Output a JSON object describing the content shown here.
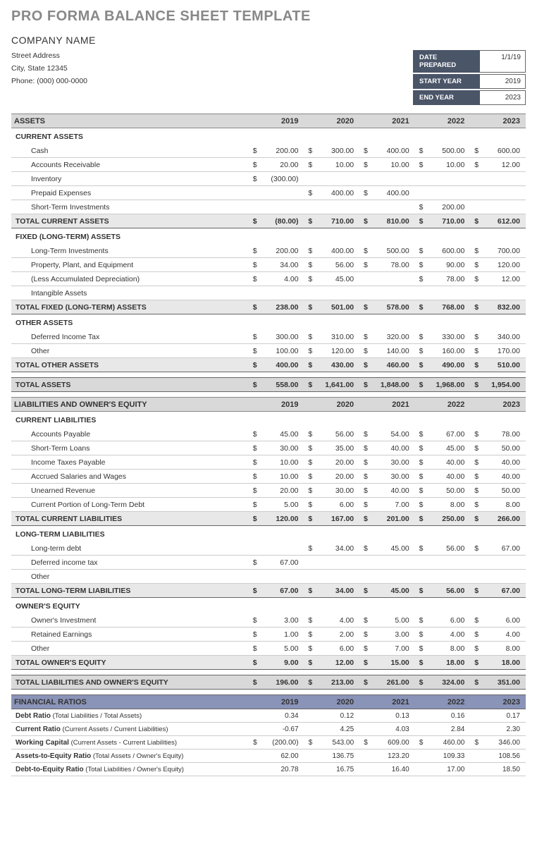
{
  "title": "PRO FORMA BALANCE SHEET TEMPLATE",
  "company": "COMPANY NAME",
  "address": {
    "street": "Street Address",
    "city": "City, State  12345",
    "phone": "Phone: (000) 000-0000"
  },
  "meta": {
    "date_prepared_label": "DATE PREPARED",
    "date_prepared": "1/1/19",
    "start_year_label": "START YEAR",
    "start_year": "2019",
    "end_year_label": "END YEAR",
    "end_year": "2023"
  },
  "years": [
    "2019",
    "2020",
    "2021",
    "2022",
    "2023"
  ],
  "sections": {
    "assets_label": "ASSETS",
    "current_assets_label": "CURRENT ASSETS",
    "current_assets": [
      {
        "label": "Cash",
        "v": [
          "200.00",
          "300.00",
          "400.00",
          "500.00",
          "600.00"
        ],
        "c": [
          "$",
          "$",
          "$",
          "$",
          "$"
        ]
      },
      {
        "label": "Accounts Receivable",
        "v": [
          "20.00",
          "10.00",
          "10.00",
          "10.00",
          "12.00"
        ],
        "c": [
          "$",
          "$",
          "$",
          "$",
          "$"
        ]
      },
      {
        "label": "Inventory",
        "v": [
          "(300.00)",
          "",
          "",
          "",
          ""
        ],
        "c": [
          "$",
          "",
          "",
          "",
          ""
        ]
      },
      {
        "label": "Prepaid Expenses",
        "v": [
          "",
          "400.00",
          "400.00",
          "",
          ""
        ],
        "c": [
          "",
          "$",
          "$",
          "",
          ""
        ]
      },
      {
        "label": "Short-Term Investments",
        "v": [
          "",
          "",
          "",
          "200.00",
          ""
        ],
        "c": [
          "",
          "",
          "",
          "$",
          ""
        ]
      }
    ],
    "total_current_assets": {
      "label": "TOTAL CURRENT ASSETS",
      "v": [
        "(80.00)",
        "710.00",
        "810.00",
        "710.00",
        "612.00"
      ],
      "c": [
        "$",
        "$",
        "$",
        "$",
        "$"
      ]
    },
    "fixed_assets_label": "FIXED (LONG-TERM) ASSETS",
    "fixed_assets": [
      {
        "label": "Long-Term Investments",
        "v": [
          "200.00",
          "400.00",
          "500.00",
          "600.00",
          "700.00"
        ],
        "c": [
          "$",
          "$",
          "$",
          "$",
          "$"
        ]
      },
      {
        "label": "Property, Plant, and Equipment",
        "v": [
          "34.00",
          "56.00",
          "78.00",
          "90.00",
          "120.00"
        ],
        "c": [
          "$",
          "$",
          "$",
          "$",
          "$"
        ]
      },
      {
        "label": "(Less Accumulated Depreciation)",
        "v": [
          "4.00",
          "45.00",
          "",
          "78.00",
          "12.00"
        ],
        "c": [
          "$",
          "$",
          "",
          "$",
          "$"
        ]
      },
      {
        "label": "Intangible Assets",
        "v": [
          "",
          "",
          "",
          "",
          ""
        ],
        "c": [
          "",
          "",
          "",
          "",
          ""
        ]
      }
    ],
    "total_fixed_assets": {
      "label": "TOTAL FIXED (LONG-TERM) ASSETS",
      "v": [
        "238.00",
        "501.00",
        "578.00",
        "768.00",
        "832.00"
      ],
      "c": [
        "$",
        "$",
        "$",
        "$",
        "$"
      ]
    },
    "other_assets_label": "OTHER ASSETS",
    "other_assets": [
      {
        "label": "Deferred Income Tax",
        "v": [
          "300.00",
          "310.00",
          "320.00",
          "330.00",
          "340.00"
        ],
        "c": [
          "$",
          "$",
          "$",
          "$",
          "$"
        ]
      },
      {
        "label": "Other",
        "v": [
          "100.00",
          "120.00",
          "140.00",
          "160.00",
          "170.00"
        ],
        "c": [
          "$",
          "$",
          "$",
          "$",
          "$"
        ]
      }
    ],
    "total_other_assets": {
      "label": "TOTAL OTHER ASSETS",
      "v": [
        "400.00",
        "430.00",
        "460.00",
        "490.00",
        "510.00"
      ],
      "c": [
        "$",
        "$",
        "$",
        "$",
        "$"
      ]
    },
    "total_assets": {
      "label": "TOTAL ASSETS",
      "v": [
        "558.00",
        "1,641.00",
        "1,848.00",
        "1,968.00",
        "1,954.00"
      ],
      "c": [
        "$",
        "$",
        "$",
        "$",
        "$"
      ]
    },
    "liab_label": "LIABILITIES AND OWNER'S EQUITY",
    "current_liab_label": "CURRENT LIABILITIES",
    "current_liab": [
      {
        "label": "Accounts Payable",
        "v": [
          "45.00",
          "56.00",
          "54.00",
          "67.00",
          "78.00"
        ],
        "c": [
          "$",
          "$",
          "$",
          "$",
          "$"
        ]
      },
      {
        "label": "Short-Term Loans",
        "v": [
          "30.00",
          "35.00",
          "40.00",
          "45.00",
          "50.00"
        ],
        "c": [
          "$",
          "$",
          "$",
          "$",
          "$"
        ]
      },
      {
        "label": "Income Taxes Payable",
        "v": [
          "10.00",
          "20.00",
          "30.00",
          "40.00",
          "40.00"
        ],
        "c": [
          "$",
          "$",
          "$",
          "$",
          "$"
        ]
      },
      {
        "label": "Accrued Salaries and Wages",
        "v": [
          "10.00",
          "20.00",
          "30.00",
          "40.00",
          "40.00"
        ],
        "c": [
          "$",
          "$",
          "$",
          "$",
          "$"
        ]
      },
      {
        "label": "Unearned Revenue",
        "v": [
          "20.00",
          "30.00",
          "40.00",
          "50.00",
          "50.00"
        ],
        "c": [
          "$",
          "$",
          "$",
          "$",
          "$"
        ]
      },
      {
        "label": "Current Portion of Long-Term Debt",
        "v": [
          "5.00",
          "6.00",
          "7.00",
          "8.00",
          "8.00"
        ],
        "c": [
          "$",
          "$",
          "$",
          "$",
          "$"
        ]
      }
    ],
    "total_current_liab": {
      "label": "TOTAL CURRENT LIABILITIES",
      "v": [
        "120.00",
        "167.00",
        "201.00",
        "250.00",
        "266.00"
      ],
      "c": [
        "$",
        "$",
        "$",
        "$",
        "$"
      ]
    },
    "lt_liab_label": "LONG-TERM LIABILITIES",
    "lt_liab": [
      {
        "label": "Long-term debt",
        "v": [
          "",
          "34.00",
          "45.00",
          "56.00",
          "67.00"
        ],
        "c": [
          "",
          "$",
          "$",
          "$",
          "$"
        ]
      },
      {
        "label": "Deferred income tax",
        "v": [
          "67.00",
          "",
          "",
          "",
          ""
        ],
        "c": [
          "$",
          "",
          "",
          "",
          ""
        ]
      },
      {
        "label": "Other",
        "v": [
          "",
          "",
          "",
          "",
          ""
        ],
        "c": [
          "",
          "",
          "",
          "",
          ""
        ]
      }
    ],
    "total_lt_liab": {
      "label": "TOTAL LONG-TERM LIABILITIES",
      "v": [
        "67.00",
        "34.00",
        "45.00",
        "56.00",
        "67.00"
      ],
      "c": [
        "$",
        "$",
        "$",
        "$",
        "$"
      ]
    },
    "equity_label": "OWNER'S EQUITY",
    "equity": [
      {
        "label": "Owner's Investment",
        "v": [
          "3.00",
          "4.00",
          "5.00",
          "6.00",
          "6.00"
        ],
        "c": [
          "$",
          "$",
          "$",
          "$",
          "$"
        ]
      },
      {
        "label": "Retained Earnings",
        "v": [
          "1.00",
          "2.00",
          "3.00",
          "4.00",
          "4.00"
        ],
        "c": [
          "$",
          "$",
          "$",
          "$",
          "$"
        ]
      },
      {
        "label": "Other",
        "v": [
          "5.00",
          "6.00",
          "7.00",
          "8.00",
          "8.00"
        ],
        "c": [
          "$",
          "$",
          "$",
          "$",
          "$"
        ]
      }
    ],
    "total_equity": {
      "label": "TOTAL OWNER'S EQUITY",
      "v": [
        "9.00",
        "12.00",
        "15.00",
        "18.00",
        "18.00"
      ],
      "c": [
        "$",
        "$",
        "$",
        "$",
        "$"
      ]
    },
    "total_liab_equity": {
      "label": "TOTAL LIABILITIES AND OWNER'S EQUITY",
      "v": [
        "196.00",
        "213.00",
        "261.00",
        "324.00",
        "351.00"
      ],
      "c": [
        "$",
        "$",
        "$",
        "$",
        "$"
      ]
    },
    "ratios_label": "FINANCIAL RATIOS",
    "ratios": [
      {
        "label": "Debt Ratio",
        "desc": " (Total Liabilities / Total Assets)",
        "v": [
          "0.34",
          "0.12",
          "0.13",
          "0.16",
          "0.17"
        ],
        "c": [
          "",
          "",
          "",
          "",
          ""
        ]
      },
      {
        "label": "Current Ratio",
        "desc": " (Current Assets / Current Liabilities)",
        "v": [
          "-0.67",
          "4.25",
          "4.03",
          "2.84",
          "2.30"
        ],
        "c": [
          "",
          "",
          "",
          "",
          ""
        ]
      },
      {
        "label": "Working Capital",
        "desc": " (Current Assets - Current Liabilities)",
        "v": [
          "(200.00)",
          "543.00",
          "609.00",
          "460.00",
          "346.00"
        ],
        "c": [
          "$",
          "$",
          "$",
          "$",
          "$"
        ]
      },
      {
        "label": "Assets-to-Equity Ratio",
        "desc": " (Total Assets / Owner's Equity)",
        "v": [
          "62.00",
          "136.75",
          "123.20",
          "109.33",
          "108.56"
        ],
        "c": [
          "",
          "",
          "",
          "",
          ""
        ]
      },
      {
        "label": "Debt-to-Equity Ratio",
        "desc": " (Total Liabilities / Owner's Equity)",
        "v": [
          "20.78",
          "16.75",
          "16.40",
          "17.00",
          "18.50"
        ],
        "c": [
          "",
          "",
          "",
          "",
          ""
        ]
      }
    ]
  }
}
